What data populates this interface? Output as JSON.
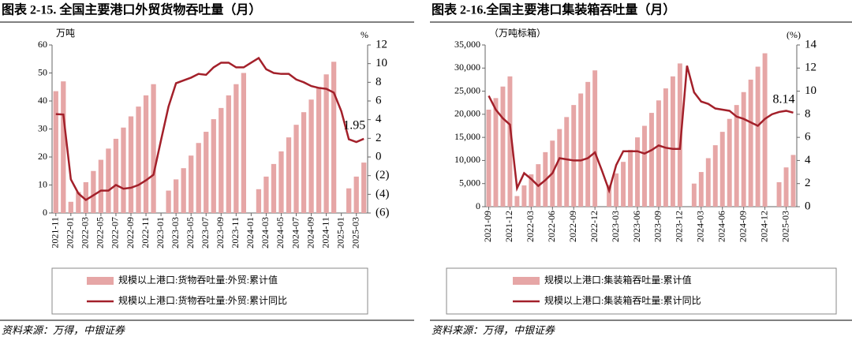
{
  "chart_data": [
    {
      "type": "combo",
      "title": "图表 2-15. 全国主要港口外贸货物吞吐量（月）",
      "source": "资料来源：万得，中银证券",
      "y_label": "万吨",
      "y2_label": "%",
      "categories": [
        "2021-11",
        null,
        "2022-01",
        null,
        "2022-03",
        null,
        "2022-05",
        null,
        "2022-07",
        null,
        "2022-09",
        null,
        "2022-11",
        null,
        "2023-01",
        null,
        "2023-03",
        null,
        "2023-05",
        null,
        "2023-07",
        null,
        "2023-09",
        null,
        "2023-11",
        null,
        "2024-01",
        null,
        "2024-03",
        null,
        "2024-05",
        null,
        "2024-07",
        null,
        "2024-09",
        null,
        "2024-11",
        null,
        "2025-01",
        null,
        "2025-03",
        null
      ],
      "series": [
        {
          "name": "规模以上港口:货物吞吐量:外贸:累计值",
          "type": "bar",
          "color": "#e6a6a6",
          "values": [
            43.5,
            47,
            4,
            7.5,
            11,
            15,
            19,
            23,
            26.5,
            30.5,
            34.5,
            38,
            42,
            46,
            null,
            8,
            12,
            16,
            20.5,
            25,
            29,
            33.5,
            37.5,
            42,
            46,
            50,
            null,
            8.5,
            13,
            17.5,
            22,
            27,
            31.5,
            36,
            40.5,
            45,
            49.5,
            54,
            null,
            8.8,
            13,
            18
          ]
        },
        {
          "name": "规模以上港口:货物吞吐量:外贸:累计同比",
          "type": "line",
          "axis": "y2",
          "color": "#a3202a",
          "values": [
            4.6,
            4.55,
            -2.4,
            -3.9,
            -4.6,
            -4.1,
            -3.6,
            -3.6,
            -3.0,
            -3.4,
            -3.3,
            -3.0,
            -2.5,
            -1.9,
            1.8,
            5.4,
            7.9,
            8.2,
            8.5,
            8.9,
            8.8,
            9.6,
            10.1,
            10.1,
            9.6,
            9.6,
            10.1,
            10.6,
            9.4,
            9.0,
            8.9,
            8.9,
            8.3,
            8.0,
            7.6,
            7.4,
            7.3,
            6.9,
            4.9,
            1.9,
            1.6,
            1.95
          ],
          "value_labels": [
            null,
            null,
            null,
            null,
            null,
            null,
            null,
            null,
            null,
            null,
            null,
            null,
            null,
            null,
            null,
            null,
            null,
            null,
            null,
            null,
            null,
            null,
            null,
            null,
            null,
            null,
            null,
            null,
            null,
            null,
            null,
            null,
            null,
            null,
            null,
            null,
            null,
            null,
            null,
            null,
            null,
            "1.95"
          ]
        }
      ],
      "ylim": [
        0,
        60
      ],
      "yticks": [
        0,
        10,
        20,
        30,
        40,
        50,
        60
      ],
      "y2lim": [
        -6,
        12
      ],
      "y2ticks": [
        {
          "value": -6,
          "label": "(6)"
        },
        {
          "value": -4,
          "label": "(4)"
        },
        {
          "value": -2,
          "label": "(2)"
        },
        0,
        2,
        4,
        6,
        8,
        10,
        12
      ],
      "y2_negative_tick_color": "#e8211e",
      "grid": false
    },
    {
      "type": "combo",
      "title": "图表 2-16.全国主要港口集装箱吞吐量（月）",
      "source": "资料来源：万得，中银证券",
      "y_label": "（万吨标箱）",
      "y2_label": "(%)",
      "categories": [
        "2021-09",
        null,
        null,
        "2021-12",
        null,
        null,
        "2022-03",
        null,
        null,
        "2022-06",
        null,
        null,
        "2022-09",
        null,
        null,
        "2022-12",
        null,
        null,
        "2023-03",
        null,
        null,
        "2023-06",
        null,
        null,
        "2023-09",
        null,
        null,
        "2023-12",
        null,
        null,
        "2024-03",
        null,
        null,
        "2024-06",
        null,
        null,
        "2024-09",
        null,
        null,
        "2024-12",
        null,
        null,
        "2025-03",
        null
      ],
      "series": [
        {
          "name": "规模以上港口:集装箱吞吐量:累计值",
          "type": "bar",
          "color": "#e6a6a6",
          "values": [
            21000,
            23500,
            26000,
            28200,
            2300,
            4600,
            7000,
            9200,
            11800,
            14300,
            16800,
            19400,
            22000,
            24500,
            27000,
            29500,
            null,
            4700,
            7200,
            9700,
            12300,
            15000,
            17500,
            20300,
            23000,
            25600,
            28200,
            31000,
            null,
            5000,
            7500,
            10500,
            13300,
            16200,
            19000,
            22000,
            24800,
            27500,
            30300,
            33200,
            null,
            5300,
            8500,
            11200
          ]
        },
        {
          "name": "规模以上港口:集装箱吞吐量:累计同比",
          "type": "line",
          "axis": "y2",
          "color": "#a3202a",
          "values": [
            9.6,
            8.4,
            7.65,
            7.1,
            1.6,
            2.9,
            2.4,
            1.8,
            2.3,
            2.9,
            4.2,
            4.1,
            4.0,
            4.0,
            4.2,
            4.7,
            3.1,
            1.4,
            3.6,
            4.8,
            4.8,
            4.8,
            4.6,
            4.9,
            5.3,
            5.1,
            5.0,
            5.0,
            12.2,
            9.9,
            9.1,
            8.9,
            8.5,
            8.4,
            8.3,
            7.8,
            7.6,
            7.3,
            7.0,
            7.6,
            8.0,
            8.2,
            8.3,
            8.14
          ],
          "value_labels": [
            null,
            null,
            null,
            null,
            null,
            null,
            null,
            null,
            null,
            null,
            null,
            null,
            null,
            null,
            null,
            null,
            null,
            null,
            null,
            null,
            null,
            null,
            null,
            null,
            null,
            null,
            null,
            null,
            null,
            null,
            null,
            null,
            null,
            null,
            null,
            null,
            null,
            null,
            null,
            null,
            null,
            null,
            null,
            "8.14"
          ]
        }
      ],
      "ylim": [
        0,
        35000
      ],
      "yticks": [
        0,
        {
          "value": 5000,
          "label": "5,000"
        },
        {
          "value": 10000,
          "label": "10,000"
        },
        {
          "value": 15000,
          "label": "15,000"
        },
        {
          "value": 20000,
          "label": "20,000"
        },
        {
          "value": 25000,
          "label": "25,000"
        },
        {
          "value": 30000,
          "label": "30,000"
        },
        {
          "value": 35000,
          "label": "35,000"
        }
      ],
      "y2lim": [
        0,
        14
      ],
      "y2ticks": [
        0,
        2,
        4,
        6,
        8,
        10,
        12,
        14
      ],
      "grid": false
    }
  ]
}
